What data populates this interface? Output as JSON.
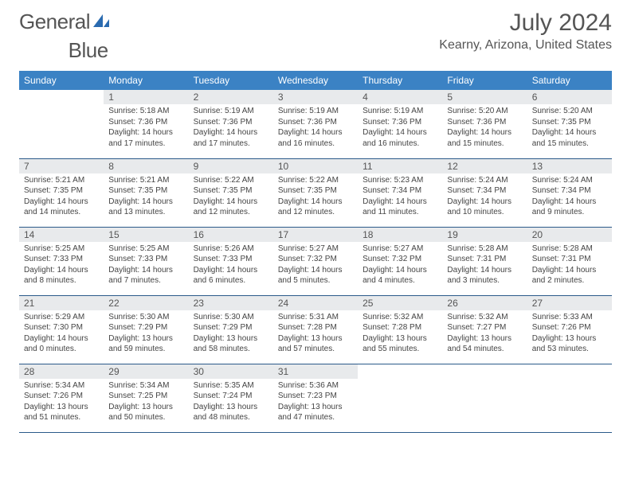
{
  "logo": {
    "general": "General",
    "blue": "Blue"
  },
  "header": {
    "month_year": "July 2024",
    "location": "Kearny, Arizona, United States"
  },
  "colors": {
    "header_bg": "#3b82c4",
    "daynum_bg": "#e8eaec",
    "row_border": "#2b5a8a"
  },
  "days": [
    "Sunday",
    "Monday",
    "Tuesday",
    "Wednesday",
    "Thursday",
    "Friday",
    "Saturday"
  ],
  "weeks": [
    [
      null,
      {
        "n": "1",
        "sr": "Sunrise: 5:18 AM",
        "ss": "Sunset: 7:36 PM",
        "d1": "Daylight: 14 hours",
        "d2": "and 17 minutes."
      },
      {
        "n": "2",
        "sr": "Sunrise: 5:19 AM",
        "ss": "Sunset: 7:36 PM",
        "d1": "Daylight: 14 hours",
        "d2": "and 17 minutes."
      },
      {
        "n": "3",
        "sr": "Sunrise: 5:19 AM",
        "ss": "Sunset: 7:36 PM",
        "d1": "Daylight: 14 hours",
        "d2": "and 16 minutes."
      },
      {
        "n": "4",
        "sr": "Sunrise: 5:19 AM",
        "ss": "Sunset: 7:36 PM",
        "d1": "Daylight: 14 hours",
        "d2": "and 16 minutes."
      },
      {
        "n": "5",
        "sr": "Sunrise: 5:20 AM",
        "ss": "Sunset: 7:36 PM",
        "d1": "Daylight: 14 hours",
        "d2": "and 15 minutes."
      },
      {
        "n": "6",
        "sr": "Sunrise: 5:20 AM",
        "ss": "Sunset: 7:35 PM",
        "d1": "Daylight: 14 hours",
        "d2": "and 15 minutes."
      }
    ],
    [
      {
        "n": "7",
        "sr": "Sunrise: 5:21 AM",
        "ss": "Sunset: 7:35 PM",
        "d1": "Daylight: 14 hours",
        "d2": "and 14 minutes."
      },
      {
        "n": "8",
        "sr": "Sunrise: 5:21 AM",
        "ss": "Sunset: 7:35 PM",
        "d1": "Daylight: 14 hours",
        "d2": "and 13 minutes."
      },
      {
        "n": "9",
        "sr": "Sunrise: 5:22 AM",
        "ss": "Sunset: 7:35 PM",
        "d1": "Daylight: 14 hours",
        "d2": "and 12 minutes."
      },
      {
        "n": "10",
        "sr": "Sunrise: 5:22 AM",
        "ss": "Sunset: 7:35 PM",
        "d1": "Daylight: 14 hours",
        "d2": "and 12 minutes."
      },
      {
        "n": "11",
        "sr": "Sunrise: 5:23 AM",
        "ss": "Sunset: 7:34 PM",
        "d1": "Daylight: 14 hours",
        "d2": "and 11 minutes."
      },
      {
        "n": "12",
        "sr": "Sunrise: 5:24 AM",
        "ss": "Sunset: 7:34 PM",
        "d1": "Daylight: 14 hours",
        "d2": "and 10 minutes."
      },
      {
        "n": "13",
        "sr": "Sunrise: 5:24 AM",
        "ss": "Sunset: 7:34 PM",
        "d1": "Daylight: 14 hours",
        "d2": "and 9 minutes."
      }
    ],
    [
      {
        "n": "14",
        "sr": "Sunrise: 5:25 AM",
        "ss": "Sunset: 7:33 PM",
        "d1": "Daylight: 14 hours",
        "d2": "and 8 minutes."
      },
      {
        "n": "15",
        "sr": "Sunrise: 5:25 AM",
        "ss": "Sunset: 7:33 PM",
        "d1": "Daylight: 14 hours",
        "d2": "and 7 minutes."
      },
      {
        "n": "16",
        "sr": "Sunrise: 5:26 AM",
        "ss": "Sunset: 7:33 PM",
        "d1": "Daylight: 14 hours",
        "d2": "and 6 minutes."
      },
      {
        "n": "17",
        "sr": "Sunrise: 5:27 AM",
        "ss": "Sunset: 7:32 PM",
        "d1": "Daylight: 14 hours",
        "d2": "and 5 minutes."
      },
      {
        "n": "18",
        "sr": "Sunrise: 5:27 AM",
        "ss": "Sunset: 7:32 PM",
        "d1": "Daylight: 14 hours",
        "d2": "and 4 minutes."
      },
      {
        "n": "19",
        "sr": "Sunrise: 5:28 AM",
        "ss": "Sunset: 7:31 PM",
        "d1": "Daylight: 14 hours",
        "d2": "and 3 minutes."
      },
      {
        "n": "20",
        "sr": "Sunrise: 5:28 AM",
        "ss": "Sunset: 7:31 PM",
        "d1": "Daylight: 14 hours",
        "d2": "and 2 minutes."
      }
    ],
    [
      {
        "n": "21",
        "sr": "Sunrise: 5:29 AM",
        "ss": "Sunset: 7:30 PM",
        "d1": "Daylight: 14 hours",
        "d2": "and 0 minutes."
      },
      {
        "n": "22",
        "sr": "Sunrise: 5:30 AM",
        "ss": "Sunset: 7:29 PM",
        "d1": "Daylight: 13 hours",
        "d2": "and 59 minutes."
      },
      {
        "n": "23",
        "sr": "Sunrise: 5:30 AM",
        "ss": "Sunset: 7:29 PM",
        "d1": "Daylight: 13 hours",
        "d2": "and 58 minutes."
      },
      {
        "n": "24",
        "sr": "Sunrise: 5:31 AM",
        "ss": "Sunset: 7:28 PM",
        "d1": "Daylight: 13 hours",
        "d2": "and 57 minutes."
      },
      {
        "n": "25",
        "sr": "Sunrise: 5:32 AM",
        "ss": "Sunset: 7:28 PM",
        "d1": "Daylight: 13 hours",
        "d2": "and 55 minutes."
      },
      {
        "n": "26",
        "sr": "Sunrise: 5:32 AM",
        "ss": "Sunset: 7:27 PM",
        "d1": "Daylight: 13 hours",
        "d2": "and 54 minutes."
      },
      {
        "n": "27",
        "sr": "Sunrise: 5:33 AM",
        "ss": "Sunset: 7:26 PM",
        "d1": "Daylight: 13 hours",
        "d2": "and 53 minutes."
      }
    ],
    [
      {
        "n": "28",
        "sr": "Sunrise: 5:34 AM",
        "ss": "Sunset: 7:26 PM",
        "d1": "Daylight: 13 hours",
        "d2": "and 51 minutes."
      },
      {
        "n": "29",
        "sr": "Sunrise: 5:34 AM",
        "ss": "Sunset: 7:25 PM",
        "d1": "Daylight: 13 hours",
        "d2": "and 50 minutes."
      },
      {
        "n": "30",
        "sr": "Sunrise: 5:35 AM",
        "ss": "Sunset: 7:24 PM",
        "d1": "Daylight: 13 hours",
        "d2": "and 48 minutes."
      },
      {
        "n": "31",
        "sr": "Sunrise: 5:36 AM",
        "ss": "Sunset: 7:23 PM",
        "d1": "Daylight: 13 hours",
        "d2": "and 47 minutes."
      },
      null,
      null,
      null
    ]
  ]
}
